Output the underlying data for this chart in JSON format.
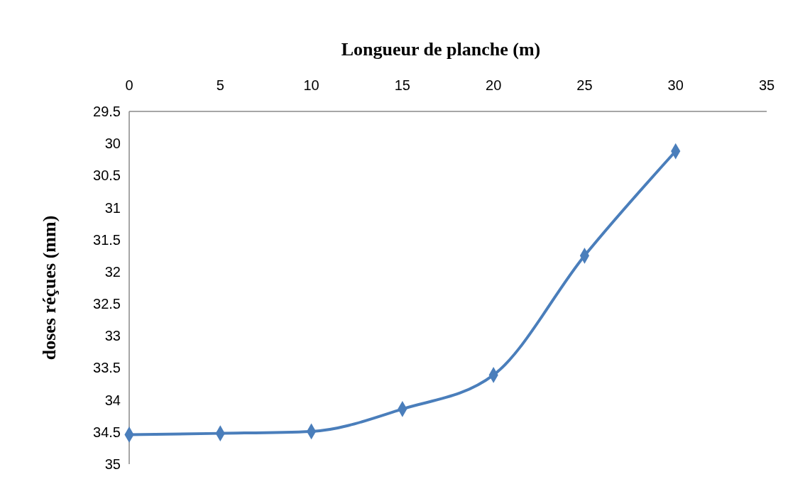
{
  "chart_data": {
    "type": "line",
    "xlabel": "Longueur de planche (m)",
    "ylabel": "doses réçues (mm)",
    "x": [
      0,
      5,
      10,
      15,
      20,
      25,
      30
    ],
    "series": [
      {
        "color": "#4a7ebb",
        "values": [
          34.54,
          34.52,
          34.49,
          34.14,
          33.61,
          31.75,
          30.12
        ]
      }
    ],
    "xlim": [
      0,
      35
    ],
    "xticks": [
      0,
      5,
      10,
      15,
      20,
      25,
      30,
      35
    ],
    "ylim": [
      35,
      29.5
    ],
    "yticks": [
      {
        "value": 29.5,
        "label": "29.5"
      },
      30,
      {
        "value": 30.5,
        "label": "30.5"
      },
      31,
      {
        "value": 31.5,
        "label": "31.5"
      },
      32,
      {
        "value": 32.5,
        "label": "32.5"
      },
      33,
      {
        "value": 33.5,
        "label": "33.5"
      },
      34,
      {
        "value": 34.5,
        "label": "34.5"
      },
      35
    ],
    "grid": false,
    "marker": "diamond",
    "line_style": "solid"
  }
}
